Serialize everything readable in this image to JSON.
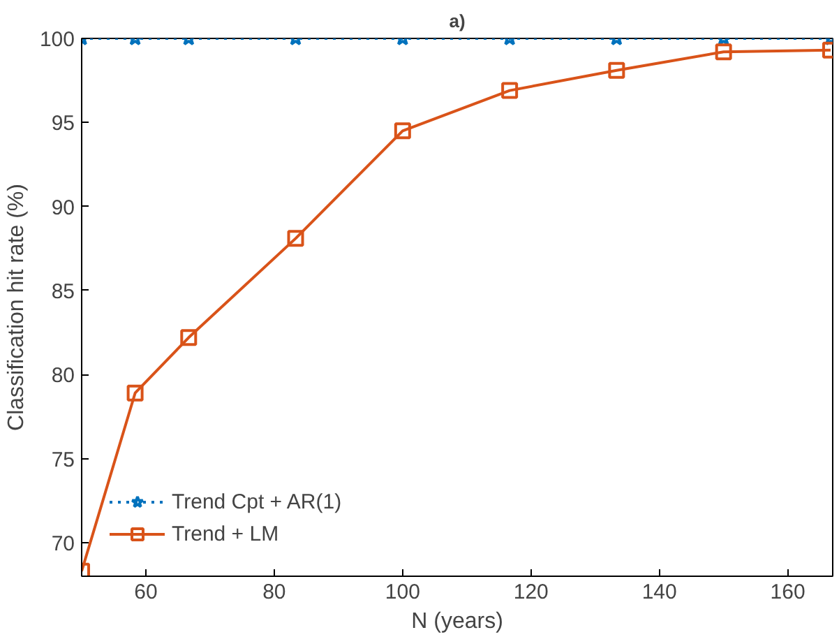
{
  "chart_data": {
    "type": "line",
    "title": "a)",
    "xlabel": "N (years)",
    "ylabel": "Classification hit rate (%)",
    "x": [
      50,
      58.33,
      66.67,
      83.33,
      100,
      116.67,
      133.33,
      150,
      166.67
    ],
    "series": [
      {
        "name": "Trend Cpt + AR(1)",
        "color": "#0072bd",
        "marker": "star",
        "line_style": "dotted",
        "values": [
          100,
          100,
          100,
          100,
          100,
          100,
          100,
          100,
          100
        ]
      },
      {
        "name": "Trend + LM",
        "color": "#d95319",
        "marker": "square",
        "line_style": "solid",
        "values": [
          68.3,
          78.9,
          82.2,
          88.1,
          94.5,
          96.9,
          98.1,
          99.2,
          99.3
        ]
      }
    ],
    "xlim": [
      50,
      167
    ],
    "xticks": [
      60,
      80,
      100,
      120,
      140,
      160
    ],
    "ylim": [
      68,
      100
    ],
    "yticks": [
      70,
      75,
      80,
      85,
      90,
      95,
      100
    ],
    "grid": false,
    "legend": "bottom left"
  }
}
